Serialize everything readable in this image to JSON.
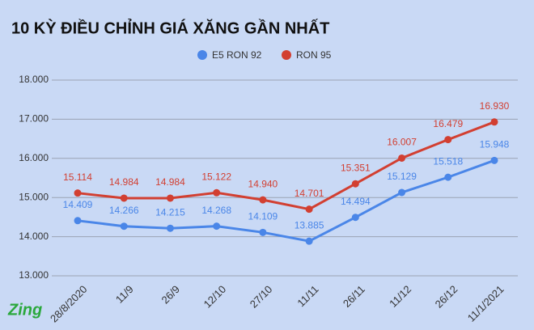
{
  "chart_data": {
    "type": "line",
    "title": "10 KỲ ĐIỀU CHỈNH GIÁ XĂNG GẦN NHẤT",
    "categories": [
      "28/8/2020",
      "11/9",
      "26/9",
      "12/10",
      "27/10",
      "11/11",
      "26/11",
      "11/12",
      "26/12",
      "11/1/2021"
    ],
    "series": [
      {
        "name": "E5 RON 92",
        "color": "#4a86e8",
        "values": [
          14409,
          14266,
          14215,
          14268,
          14109,
          13885,
          14494,
          15129,
          15518,
          15948
        ],
        "value_labels": [
          "14.409",
          "14.266",
          "14.215",
          "14.268",
          "14.109",
          "13.885",
          "14.494",
          "15.129",
          "15.518",
          "15.948"
        ]
      },
      {
        "name": "RON 95",
        "color": "#d23f31",
        "values": [
          15114,
          14984,
          14984,
          15122,
          14940,
          14701,
          15351,
          16007,
          16479,
          16930
        ],
        "value_labels": [
          "15.114",
          "14.984",
          "14.984",
          "15.122",
          "14.940",
          "14.701",
          "15.351",
          "16.007",
          "16.479",
          "16.930"
        ]
      }
    ],
    "ylim": [
      13000,
      18000
    ],
    "yticks": [
      {
        "value": 13000,
        "label": "13.000"
      },
      {
        "value": 14000,
        "label": "14.000"
      },
      {
        "value": 15000,
        "label": "15.000"
      },
      {
        "value": 16000,
        "label": "16.000"
      },
      {
        "value": 17000,
        "label": "17.000"
      },
      {
        "value": 18000,
        "label": "18.000"
      }
    ],
    "grid": true,
    "legend": "top",
    "logo": "Zing"
  }
}
